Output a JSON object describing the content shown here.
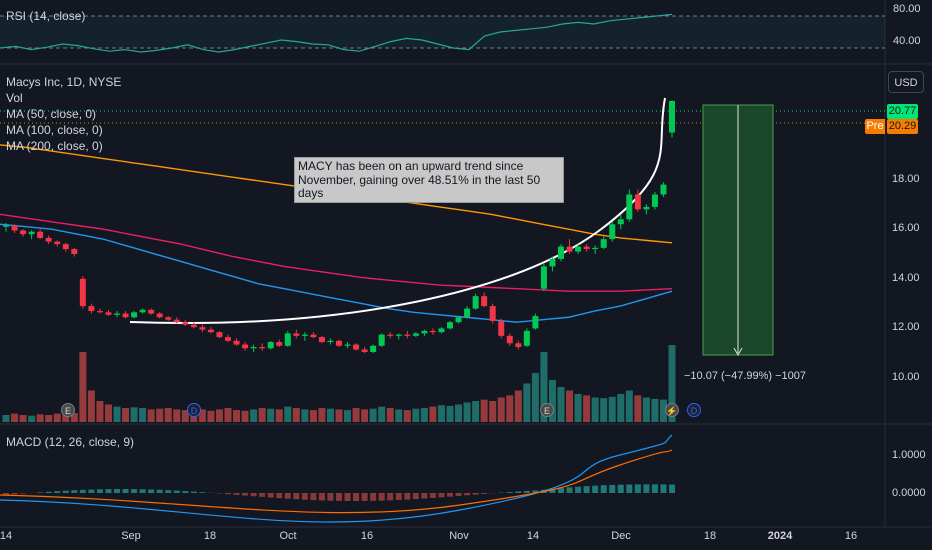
{
  "rsi": {
    "label": "RSI (14, close)",
    "ticks": [
      "80.00",
      "40.00"
    ]
  },
  "legend": {
    "symbol": "Macys Inc, 1D, NYSE",
    "vol": "Vol",
    "ma50": "MA (50, close, 0)",
    "ma100": "MA (100, close, 0)",
    "ma200": "MA (200, close, 0)"
  },
  "currency_button": "USD",
  "price_axis": {
    "ticks": [
      "18.00",
      "16.00",
      "14.00",
      "12.00",
      "10.00"
    ],
    "last_price": "20.77",
    "pre_label": "Pre",
    "pre_price": "20.29",
    "last_color": "#00e676",
    "pre_color": "#f57c00"
  },
  "annotation": "MACY has been on an upward trend since November, gaining over 48.51% in the last 50 days",
  "measure_label": "−10.07 (−47.99%) −1007",
  "events": {
    "earnings": "E",
    "dividend": "D"
  },
  "macd": {
    "label": "MACD (12, 26, close, 9)",
    "ticks": [
      "1.0000",
      "0.0000"
    ]
  },
  "time_axis": [
    {
      "label": "14",
      "bold": false
    },
    {
      "label": "Sep",
      "bold": false
    },
    {
      "label": "18",
      "bold": false
    },
    {
      "label": "Oct",
      "bold": false
    },
    {
      "label": "16",
      "bold": false
    },
    {
      "label": "Nov",
      "bold": false
    },
    {
      "label": "14",
      "bold": false
    },
    {
      "label": "Dec",
      "bold": false
    },
    {
      "label": "18",
      "bold": false
    },
    {
      "label": "2024",
      "bold": true
    },
    {
      "label": "16",
      "bold": false
    }
  ],
  "colors": {
    "background": "#131722",
    "up": "#26a69a",
    "up_candle": "#00c853",
    "down_candle": "#f23645",
    "ma50": "#2196f3",
    "ma100": "#e91e63",
    "ma200": "#ff9800",
    "rsi": "#26a69a",
    "macd_line": "#2196f3",
    "signal_line": "#ff6d00",
    "measure_fill": "#1b4d2a"
  },
  "chart_data": {
    "type": "candlestick",
    "price_range": [
      9.0,
      20.8
    ],
    "candles": [
      [
        15.7,
        15.85,
        15.5,
        15.75
      ],
      [
        15.75,
        15.8,
        15.45,
        15.55
      ],
      [
        15.55,
        15.6,
        15.3,
        15.4
      ],
      [
        15.4,
        15.55,
        15.2,
        15.5
      ],
      [
        15.5,
        15.6,
        15.2,
        15.25
      ],
      [
        15.25,
        15.35,
        15.0,
        15.1
      ],
      [
        15.1,
        15.15,
        14.9,
        15.0
      ],
      [
        15.0,
        15.05,
        14.7,
        14.8
      ],
      [
        14.8,
        14.85,
        14.5,
        14.6
      ],
      [
        13.6,
        13.7,
        12.4,
        12.5
      ],
      [
        12.5,
        12.6,
        12.2,
        12.3
      ],
      [
        12.3,
        12.4,
        12.2,
        12.25
      ],
      [
        12.25,
        12.35,
        12.1,
        12.15
      ],
      [
        12.15,
        12.3,
        12.05,
        12.2
      ],
      [
        12.2,
        12.3,
        12.0,
        12.05
      ],
      [
        12.05,
        12.3,
        12.0,
        12.25
      ],
      [
        12.25,
        12.4,
        12.2,
        12.35
      ],
      [
        12.35,
        12.4,
        12.15,
        12.2
      ],
      [
        12.2,
        12.25,
        12.0,
        12.05
      ],
      [
        12.05,
        12.1,
        11.9,
        11.95
      ],
      [
        11.95,
        12.05,
        11.8,
        11.85
      ],
      [
        11.85,
        11.95,
        11.7,
        11.75
      ],
      [
        11.75,
        11.85,
        11.6,
        11.65
      ],
      [
        11.65,
        11.75,
        11.45,
        11.55
      ],
      [
        11.55,
        11.65,
        11.4,
        11.45
      ],
      [
        11.45,
        11.5,
        11.2,
        11.25
      ],
      [
        11.25,
        11.35,
        11.05,
        11.1
      ],
      [
        11.1,
        11.2,
        10.9,
        10.95
      ],
      [
        10.95,
        11.05,
        10.7,
        10.8
      ],
      [
        10.8,
        10.95,
        10.65,
        10.85
      ],
      [
        10.85,
        11.0,
        10.7,
        10.8
      ],
      [
        10.8,
        11.1,
        10.75,
        11.05
      ],
      [
        11.05,
        11.15,
        10.85,
        10.9
      ],
      [
        10.9,
        11.5,
        10.85,
        11.4
      ],
      [
        11.4,
        11.55,
        11.2,
        11.3
      ],
      [
        11.3,
        11.45,
        11.1,
        11.35
      ],
      [
        11.35,
        11.45,
        11.2,
        11.25
      ],
      [
        11.25,
        11.3,
        11.0,
        11.05
      ],
      [
        11.05,
        11.2,
        10.95,
        11.1
      ],
      [
        11.1,
        11.15,
        10.85,
        10.9
      ],
      [
        10.9,
        11.05,
        10.8,
        10.95
      ],
      [
        10.95,
        11.0,
        10.7,
        10.75
      ],
      [
        10.75,
        10.85,
        10.6,
        10.65
      ],
      [
        10.65,
        10.95,
        10.6,
        10.9
      ],
      [
        10.9,
        11.4,
        10.85,
        11.35
      ],
      [
        11.35,
        11.45,
        11.2,
        11.3
      ],
      [
        11.3,
        11.4,
        11.15,
        11.35
      ],
      [
        11.35,
        11.5,
        11.2,
        11.3
      ],
      [
        11.3,
        11.45,
        11.25,
        11.4
      ],
      [
        11.4,
        11.55,
        11.3,
        11.5
      ],
      [
        11.5,
        11.6,
        11.35,
        11.45
      ],
      [
        11.45,
        11.65,
        11.4,
        11.6
      ],
      [
        11.6,
        11.9,
        11.55,
        11.85
      ],
      [
        11.85,
        12.1,
        11.8,
        12.05
      ],
      [
        12.05,
        12.5,
        12.0,
        12.4
      ],
      [
        12.4,
        13.0,
        12.35,
        12.9
      ],
      [
        12.9,
        13.05,
        12.45,
        12.5
      ],
      [
        12.5,
        12.6,
        11.8,
        11.9
      ],
      [
        11.9,
        12.0,
        11.2,
        11.3
      ],
      [
        11.3,
        11.4,
        10.9,
        11.0
      ],
      [
        11.0,
        11.1,
        10.75,
        10.85
      ],
      [
        10.9,
        11.6,
        10.85,
        11.5
      ],
      [
        11.6,
        12.2,
        11.55,
        12.1
      ],
      [
        13.2,
        14.2,
        13.1,
        14.1
      ],
      [
        14.1,
        14.5,
        13.9,
        14.4
      ],
      [
        14.4,
        15.0,
        14.3,
        14.9
      ],
      [
        14.9,
        15.2,
        14.6,
        14.7
      ],
      [
        14.7,
        15.0,
        14.6,
        14.9
      ],
      [
        14.9,
        15.0,
        14.7,
        14.8
      ],
      [
        14.8,
        14.95,
        14.6,
        14.85
      ],
      [
        14.85,
        15.3,
        14.8,
        15.2
      ],
      [
        15.2,
        15.9,
        15.1,
        15.8
      ],
      [
        15.8,
        16.2,
        15.6,
        16.0
      ],
      [
        16.0,
        17.2,
        15.9,
        17.0
      ],
      [
        17.0,
        17.2,
        16.3,
        16.4
      ],
      [
        16.4,
        16.6,
        16.2,
        16.5
      ],
      [
        16.5,
        17.1,
        16.4,
        17.0
      ],
      [
        17.0,
        17.5,
        16.9,
        17.4
      ],
      [
        19.5,
        20.8,
        19.3,
        20.77
      ]
    ],
    "volume_relative": [
      0.1,
      0.12,
      0.1,
      0.09,
      0.11,
      0.1,
      0.12,
      0.1,
      0.13,
      1.0,
      0.45,
      0.3,
      0.25,
      0.22,
      0.2,
      0.21,
      0.2,
      0.18,
      0.19,
      0.2,
      0.18,
      0.17,
      0.2,
      0.18,
      0.16,
      0.18,
      0.2,
      0.17,
      0.16,
      0.18,
      0.2,
      0.19,
      0.18,
      0.22,
      0.2,
      0.18,
      0.17,
      0.2,
      0.19,
      0.18,
      0.17,
      0.2,
      0.18,
      0.19,
      0.22,
      0.2,
      0.18,
      0.17,
      0.19,
      0.2,
      0.22,
      0.24,
      0.23,
      0.25,
      0.28,
      0.3,
      0.32,
      0.3,
      0.35,
      0.38,
      0.45,
      0.55,
      0.7,
      1.0,
      0.6,
      0.5,
      0.45,
      0.4,
      0.38,
      0.35,
      0.34,
      0.36,
      0.4,
      0.45,
      0.38,
      0.35,
      0.33,
      0.32,
      1.1
    ],
    "ma50": [
      15.8,
      15.7,
      15.6,
      15.4,
      15.2,
      14.9,
      14.6,
      14.3,
      14.0,
      13.7,
      13.4,
      13.2,
      13.0,
      12.8,
      12.6,
      12.4,
      12.25,
      12.15,
      12.05,
      11.95,
      11.85,
      11.95,
      12.05,
      12.3,
      12.5,
      12.8,
      13.1
    ],
    "ma100": [
      16.2,
      16.05,
      15.9,
      15.75,
      15.6,
      15.4,
      15.2,
      15.0,
      14.75,
      14.5,
      14.3,
      14.1,
      13.95,
      13.8,
      13.65,
      13.55,
      13.45,
      13.35,
      13.3,
      13.25,
      13.2,
      13.15,
      13.1,
      13.1,
      13.1,
      13.15,
      13.2
    ],
    "ma200": [
      19.0,
      18.9,
      18.75,
      18.6,
      18.45,
      18.3,
      18.15,
      18.0,
      17.85,
      17.7,
      17.55,
      17.4,
      17.25,
      17.1,
      16.95,
      16.8,
      16.65,
      16.5,
      16.35,
      16.2,
      16.0,
      15.8,
      15.6,
      15.4,
      15.25,
      15.15,
      15.05
    ],
    "rsi": [
      40,
      42,
      38,
      41,
      45,
      43,
      39,
      36,
      38,
      35,
      37,
      40,
      44,
      38,
      35,
      38,
      42,
      46,
      50,
      48,
      45,
      44,
      38,
      36,
      42,
      48,
      52,
      50,
      45,
      40,
      38,
      55,
      60,
      62,
      64,
      66,
      70,
      72,
      70,
      74,
      76,
      78,
      80,
      82
    ]
  }
}
